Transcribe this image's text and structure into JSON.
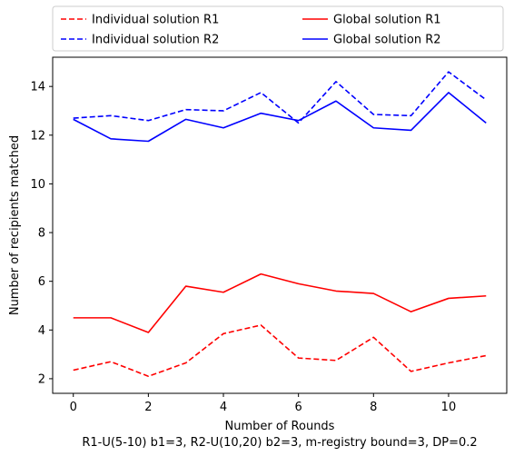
{
  "chart_data": {
    "type": "line",
    "title": "",
    "xlabel": "Number of Rounds",
    "caption": "R1-U(5-10) b1=3, R2-U(10,20) b2=3, m-registry bound=3, DP=0.2",
    "ylabel": "Number of recipients matched",
    "xlim": [
      -0.55,
      11.55
    ],
    "ylim": [
      1.4,
      15.2
    ],
    "xticks": [
      0,
      2,
      4,
      6,
      8,
      10
    ],
    "yticks": [
      2,
      4,
      6,
      8,
      10,
      12,
      14
    ],
    "grid": false,
    "legend_position": "above plot, two columns",
    "x": [
      0,
      1,
      2,
      3,
      4,
      5,
      6,
      7,
      8,
      9,
      10,
      11
    ],
    "series": [
      {
        "name": "Individual solution R1",
        "color": "#ff0000",
        "dash": "dashed",
        "values": [
          2.35,
          2.7,
          2.1,
          2.65,
          3.85,
          4.2,
          2.85,
          2.75,
          3.7,
          2.3,
          2.65,
          2.95
        ]
      },
      {
        "name": "Global solution R1",
        "color": "#ff0000",
        "dash": "solid",
        "values": [
          4.5,
          4.5,
          3.9,
          5.8,
          5.55,
          6.3,
          5.9,
          5.6,
          5.5,
          4.75,
          5.3,
          5.4
        ]
      },
      {
        "name": "Individual solution R2",
        "color": "#0000ff",
        "dash": "dashed",
        "values": [
          12.7,
          12.8,
          12.6,
          13.05,
          13.0,
          13.75,
          12.5,
          14.2,
          12.85,
          12.8,
          14.6,
          13.45
        ]
      },
      {
        "name": "Global solution R2",
        "color": "#0000ff",
        "dash": "solid",
        "values": [
          12.65,
          11.85,
          11.75,
          12.65,
          12.3,
          12.9,
          12.6,
          13.4,
          12.3,
          12.2,
          13.75,
          12.5
        ]
      }
    ],
    "legend_order": [
      0,
      2,
      1,
      3
    ]
  }
}
